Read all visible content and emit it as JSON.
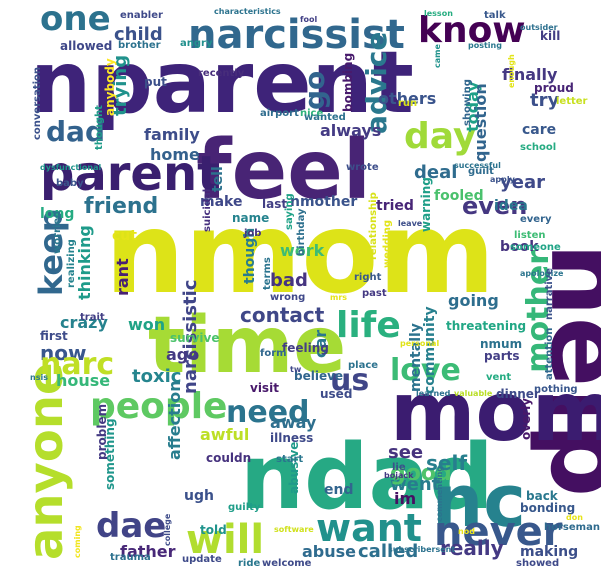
{
  "words": [
    {
      "text": "nmom",
      "color": "#dde318"
    },
    {
      "text": "nparent",
      "color": "#3e2379"
    },
    {
      "text": "ndad",
      "color": "#26a984"
    },
    {
      "text": "help",
      "color": "#440f61"
    },
    {
      "text": "mom",
      "color": "#3b1c70"
    },
    {
      "text": "feel",
      "color": "#482475"
    },
    {
      "text": "time",
      "color": "#a6db35"
    },
    {
      "text": "nc",
      "color": "#26828e"
    },
    {
      "text": "parent",
      "color": "#3a1f6f"
    },
    {
      "text": "narcissist",
      "color": "#31688e"
    },
    {
      "text": "know",
      "color": "#440154"
    },
    {
      "text": "one",
      "color": "#2c728e"
    },
    {
      "text": "anyone",
      "color": "#b5de2b"
    },
    {
      "text": "never",
      "color": "#38588c"
    },
    {
      "text": "want",
      "color": "#21918c"
    },
    {
      "text": "will",
      "color": "#b1dd2f"
    },
    {
      "text": "dae",
      "color": "#414487"
    },
    {
      "text": "people",
      "color": "#5ec962"
    },
    {
      "text": "need",
      "color": "#2b748e"
    },
    {
      "text": "life",
      "color": "#2ab07f"
    },
    {
      "text": "mother",
      "color": "#35b779"
    },
    {
      "text": "day",
      "color": "#a0da39"
    },
    {
      "text": "dad",
      "color": "#33628d"
    },
    {
      "text": "keep",
      "color": "#31688e"
    },
    {
      "text": "love",
      "color": "#3bbb75"
    },
    {
      "text": "us",
      "color": "#404688"
    },
    {
      "text": "friend",
      "color": "#2c728e"
    },
    {
      "text": "advice",
      "color": "#2a788e"
    },
    {
      "text": "go",
      "color": "#32648e"
    },
    {
      "text": "child",
      "color": "#3b528b"
    },
    {
      "text": "now",
      "color": "#39568c"
    },
    {
      "text": "narc",
      "color": "#c0df25"
    },
    {
      "text": "toxic",
      "color": "#25858e"
    },
    {
      "text": "contact",
      "color": "#3f4788"
    },
    {
      "text": "really",
      "color": "#443983"
    },
    {
      "text": "called",
      "color": "#2d708e"
    },
    {
      "text": "abuse",
      "color": "#2f6b8e"
    },
    {
      "text": "father",
      "color": "#482878"
    },
    {
      "text": "went",
      "color": "#287c8e"
    },
    {
      "text": "good",
      "color": "#4ec36b"
    },
    {
      "text": "see",
      "color": "#46337e"
    },
    {
      "text": "self",
      "color": "#277f8e"
    },
    {
      "text": "even",
      "color": "#453781"
    },
    {
      "text": "year",
      "color": "#3e4989"
    },
    {
      "text": "deal",
      "color": "#2f6c8e"
    },
    {
      "text": "family",
      "color": "#3d4d8a"
    },
    {
      "text": "home",
      "color": "#34618d"
    },
    {
      "text": "always",
      "color": "#443b84"
    },
    {
      "text": "others",
      "color": "#3a548c"
    },
    {
      "text": "today",
      "color": "#1fa188"
    },
    {
      "text": "question",
      "color": "#32658e"
    },
    {
      "text": "try",
      "color": "#3c508b"
    },
    {
      "text": "finally",
      "color": "#453882"
    },
    {
      "text": "allowed",
      "color": "#3f4889"
    },
    {
      "text": "trying",
      "color": "#20928c"
    },
    {
      "text": "dadnarcissistic",
      "color": "#355f8d"
    },
    {
      "text": "narcissistic",
      "color": "#404588"
    },
    {
      "text": "mentally",
      "color": "#2c738e"
    },
    {
      "text": "community",
      "color": "#27808e"
    },
    {
      "text": "going",
      "color": "#2e6e8e"
    },
    {
      "text": "thinking",
      "color": "#1e9b8a"
    },
    {
      "text": "crazy",
      "color": "#26828e"
    },
    {
      "text": "house",
      "color": "#35b779"
    },
    {
      "text": "ago",
      "color": "#443a83"
    },
    {
      "text": "car",
      "color": "#2a778e"
    },
    {
      "text": "bad",
      "color": "#463480"
    },
    {
      "text": "work",
      "color": "#3fbc73"
    },
    {
      "text": "won",
      "color": "#20a386"
    },
    {
      "text": "rant",
      "color": "#482173"
    },
    {
      "text": "tell",
      "color": "#2c728e"
    },
    {
      "text": "make",
      "color": "#3f4889"
    },
    {
      "text": "name",
      "color": "#25838e"
    },
    {
      "text": "last",
      "color": "#423f85"
    },
    {
      "text": "nmother",
      "color": "#3a538b"
    },
    {
      "text": "tried",
      "color": "#482677"
    },
    {
      "text": "fooled",
      "color": "#4ac16d"
    },
    {
      "text": "idea",
      "color": "#2a768e"
    },
    {
      "text": "book",
      "color": "#46337f"
    },
    {
      "text": "long",
      "color": "#25ab82"
    },
    {
      "text": "cut",
      "color": "#e5e419"
    },
    {
      "text": "trauma",
      "color": "#2d718e"
    },
    {
      "text": "update",
      "color": "#3e4a89"
    },
    {
      "text": "told",
      "color": "#1f948c"
    },
    {
      "text": "problem",
      "color": "#443a83"
    },
    {
      "text": "something",
      "color": "#1f968b"
    },
    {
      "text": "ugh",
      "color": "#3b518b"
    },
    {
      "text": "awful",
      "color": "#bddf26"
    },
    {
      "text": "affection",
      "color": "#287d8e"
    },
    {
      "text": "couldn",
      "color": "#46327e"
    },
    {
      "text": "away",
      "color": "#2e6f8e"
    },
    {
      "text": "used",
      "color": "#3e4c8a"
    },
    {
      "text": "end",
      "color": "#32658e"
    },
    {
      "text": "abusive",
      "color": "#1f9a8a"
    },
    {
      "text": "im",
      "color": "#471063"
    },
    {
      "text": "making",
      "color": "#3c4f8a"
    },
    {
      "text": "guilty",
      "color": "#1f9e89"
    },
    {
      "text": "visit",
      "color": "#48196b"
    },
    {
      "text": "believe",
      "color": "#31668e"
    },
    {
      "text": "nmum",
      "color": "#2c728e"
    },
    {
      "text": "parts",
      "color": "#433e85"
    },
    {
      "text": "threatening",
      "color": "#22a785"
    },
    {
      "text": "care",
      "color": "#38588c"
    },
    {
      "text": "school",
      "color": "#25ab82"
    },
    {
      "text": "proud",
      "color": "#482576"
    },
    {
      "text": "warning",
      "color": "#1f9f88"
    },
    {
      "text": "bombing",
      "color": "#481a6c"
    },
    {
      "text": "recently",
      "color": "#472d7b"
    },
    {
      "text": "put",
      "color": "#3c4f8a"
    },
    {
      "text": "angry",
      "color": "#21908d"
    },
    {
      "text": "brother",
      "color": "#2c728e"
    },
    {
      "text": "enabler",
      "color": "#3e4989"
    },
    {
      "text": "characteristics",
      "color": "#2c738e"
    },
    {
      "text": "lesson",
      "color": "#27ad81"
    },
    {
      "text": "talk",
      "color": "#38588c"
    },
    {
      "text": "kill",
      "color": "#433d84"
    },
    {
      "text": "posting",
      "color": "#2a788e"
    },
    {
      "text": "letter",
      "color": "#c8e020"
    },
    {
      "text": "conversation",
      "color": "#3b518b"
    },
    {
      "text": "thought",
      "color": "#1e9c89"
    },
    {
      "text": "anybody",
      "color": "#fde725"
    },
    {
      "text": "though",
      "color": "#287c8e"
    },
    {
      "text": "terms",
      "color": "#2b748e"
    },
    {
      "text": "nice",
      "color": "#2fb47c"
    },
    {
      "text": "wrote",
      "color": "#3d4e8a"
    },
    {
      "text": "guilt",
      "color": "#2f6b8e"
    },
    {
      "text": "suicidal",
      "color": "#46307e"
    },
    {
      "text": "job",
      "color": "#45337d"
    },
    {
      "text": "saying",
      "color": "#1fa287"
    },
    {
      "text": "birthday",
      "color": "#2d708e"
    },
    {
      "text": "wrong",
      "color": "#3f4889"
    },
    {
      "text": "feeling",
      "color": "#433e85"
    },
    {
      "text": "place",
      "color": "#2c728e"
    },
    {
      "text": "right",
      "color": "#38598c"
    },
    {
      "text": "past",
      "color": "#443983"
    },
    {
      "text": "form",
      "color": "#31678e"
    },
    {
      "text": "survive",
      "color": "#4cc26c"
    },
    {
      "text": "first",
      "color": "#3e4c8a"
    },
    {
      "text": "trait",
      "color": "#423f85"
    },
    {
      "text": "worried",
      "color": "#2a788e"
    },
    {
      "text": "realizing",
      "color": "#25838e"
    },
    {
      "text": "baby",
      "color": "#3a548c"
    },
    {
      "text": "airport",
      "color": "#2f6c8e"
    },
    {
      "text": "dysfunctional",
      "color": "#1f958b"
    },
    {
      "text": "relationship",
      "color": "#d8e219"
    },
    {
      "text": "wedding",
      "color": "#e2e418"
    },
    {
      "text": "apologize",
      "color": "#2b758e"
    },
    {
      "text": "someone",
      "color": "#20a486"
    },
    {
      "text": "listen",
      "color": "#3dbc74"
    },
    {
      "text": "every",
      "color": "#32648e"
    },
    {
      "text": "successful",
      "color": "#2c738e"
    },
    {
      "text": "apply",
      "color": "#3b528b"
    },
    {
      "text": "leave",
      "color": "#3d4e8a"
    },
    {
      "text": "illness",
      "color": "#3e4989"
    },
    {
      "text": "start",
      "color": "#2a768e"
    },
    {
      "text": "lie",
      "color": "#3b518b"
    },
    {
      "text": "bojack",
      "color": "#443a83"
    },
    {
      "text": "back",
      "color": "#2a788e"
    },
    {
      "text": "bonding",
      "color": "#38588c"
    },
    {
      "text": "overly",
      "color": "#48186a"
    },
    {
      "text": "nothing",
      "color": "#39568c"
    },
    {
      "text": "dinner",
      "color": "#3e4a89"
    },
    {
      "text": "vent",
      "color": "#25ac82"
    },
    {
      "text": "learned",
      "color": "#2c718e"
    },
    {
      "text": "valuable",
      "color": "#bade28"
    },
    {
      "text": "personal",
      "color": "#e0e318"
    },
    {
      "text": "attention",
      "color": "#31688e"
    },
    {
      "text": "narrative",
      "color": "#3b528b"
    },
    {
      "text": "horseman",
      "color": "#2f6b8e"
    },
    {
      "text": "subscribersent",
      "color": "#2c728e"
    },
    {
      "text": "college",
      "color": "#3e4c8a"
    },
    {
      "text": "nod",
      "color": "#ece51b"
    },
    {
      "text": "welcome",
      "color": "#3e4a89"
    },
    {
      "text": "ride",
      "color": "#2a778e"
    },
    {
      "text": "showed",
      "color": "#3e4989"
    },
    {
      "text": "don",
      "color": "#e7e419"
    },
    {
      "text": "commenting",
      "color": "#2b748e"
    },
    {
      "text": "wanted",
      "color": "#2c728e"
    },
    {
      "text": "run",
      "color": "#dae319"
    },
    {
      "text": "came",
      "color": "#20928c"
    },
    {
      "text": "showing",
      "color": "#31668e"
    },
    {
      "text": "outsider",
      "color": "#2d708e"
    },
    {
      "text": "fool",
      "color": "#424086"
    },
    {
      "text": "enough",
      "color": "#e2e418"
    },
    {
      "text": "nsis",
      "color": "#2a788e"
    },
    {
      "text": "tw",
      "color": "#3f4889"
    },
    {
      "text": "coming",
      "color": "#f1e51d"
    },
    {
      "text": "mrs",
      "color": "#e5e419"
    },
    {
      "text": "software",
      "color": "#d0e11c"
    }
  ]
}
